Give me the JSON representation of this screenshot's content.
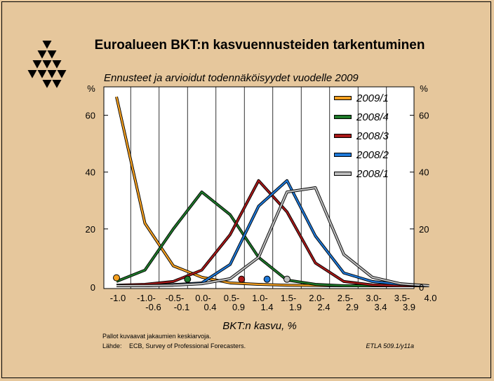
{
  "title": "Euroalueen BKT:n kasvuennusteiden tarkentuminen",
  "subtitle": "Ennusteet ja arvioidut todennäköisyydet vuodelle 2009",
  "note": "Pallot kuvaavat jakaumien keskiarvoja.",
  "source_label": "Lähde:",
  "source": "ECB, Survey of Professional Forecasters.",
  "code": "ETLA 509.1/y11a",
  "logo": "ETLA triangle logo",
  "colors": {
    "background": "#e6c79c",
    "plot_bg": "#ffffff",
    "2009/1": "#f5a020",
    "2008/4": "#1e7a2a",
    "2008/3": "#a81818",
    "2008/2": "#1e78d8",
    "2008/1": "#bdbdbd"
  },
  "chart_data": {
    "type": "line",
    "title": "Euroalueen BKT:n kasvuennusteiden tarkentuminen",
    "subtitle": "Ennusteet ja arvioidut todennäköisyydet vuodelle 2009",
    "xlabel": "BKT:n kasvu, %",
    "ylabel_left": "%",
    "ylabel_right": "%",
    "ylim": [
      0,
      70
    ],
    "yticks": [
      0,
      20,
      40,
      60
    ],
    "grid": "vertical",
    "legend_position": "top-right",
    "categories": [
      [
        "-1.0",
        ""
      ],
      [
        "-1.0-",
        "-0.6"
      ],
      [
        "-0.5-",
        "-0.1"
      ],
      [
        "0.0-",
        "0.4"
      ],
      [
        "0.5-",
        "0.9"
      ],
      [
        "1.0-",
        "1.4"
      ],
      [
        "1.5-",
        "1.9"
      ],
      [
        "2.0-",
        "2.4"
      ],
      [
        "2.5-",
        "2.9"
      ],
      [
        "3.0-",
        "3.4"
      ],
      [
        "3.5-",
        "3.9"
      ],
      [
        "4.0",
        ""
      ]
    ],
    "series": [
      {
        "name": "2009/1",
        "color": "#f5a020",
        "values": [
          66.5,
          22,
          7,
          3,
          1,
          0.5,
          0.2,
          0.1,
          0,
          0,
          0,
          0
        ],
        "mean": {
          "x": -1.0,
          "y": 2.8
        }
      },
      {
        "name": "2008/4",
        "color": "#1e7a2a",
        "values": [
          1.5,
          5.5,
          20,
          33,
          25,
          10,
          2,
          0.5,
          0,
          0,
          0,
          0
        ],
        "mean": {
          "x": 0.25,
          "y": 2.3
        }
      },
      {
        "name": "2008/3",
        "color": "#a81818",
        "values": [
          0.2,
          0.5,
          1.5,
          5.5,
          18,
          37,
          26,
          8,
          1.5,
          0.3,
          0,
          0
        ],
        "mean": {
          "x": 1.2,
          "y": 2.3
        }
      },
      {
        "name": "2008/2",
        "color": "#1e78d8",
        "values": [
          0,
          0,
          0.4,
          1,
          7.5,
          28,
          37,
          17.5,
          4.5,
          1.5,
          0.5,
          0
        ],
        "mean": {
          "x": 1.65,
          "y": 2.3
        }
      },
      {
        "name": "2008/1",
        "color": "#bdbdbd",
        "values": [
          0,
          0,
          0.2,
          0.7,
          2.5,
          10,
          33,
          34.5,
          11,
          3,
          0.7,
          0
        ],
        "mean": {
          "x": 2.0,
          "y": 2.3
        }
      }
    ]
  }
}
